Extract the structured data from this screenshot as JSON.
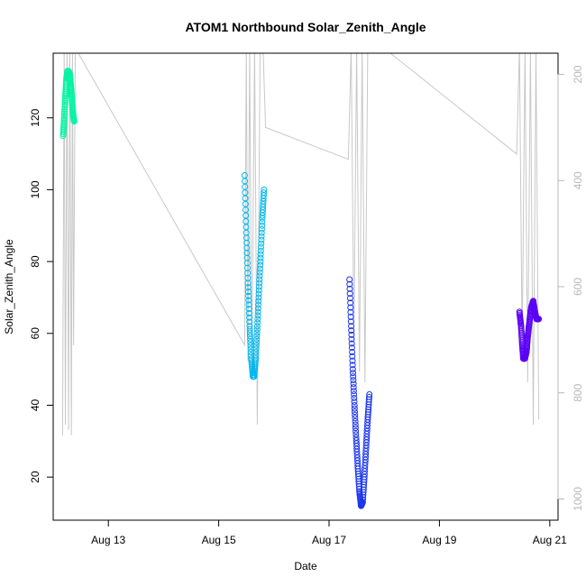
{
  "chart_data": {
    "type": "scatter",
    "title": "ATOM1 Northbound Solar_Zenith_Angle",
    "xlabel": "Date",
    "ylabel": "Solar_Zenith_Angle",
    "x_ticks": [
      "Aug 13",
      "Aug 15",
      "Aug 17",
      "Aug 19",
      "Aug 21"
    ],
    "x_tick_values": [
      13,
      15,
      17,
      19,
      21
    ],
    "xlim": [
      12.0,
      21.15
    ],
    "ylim": [
      8,
      138
    ],
    "y_ticks": [
      20,
      40,
      60,
      80,
      100,
      120
    ],
    "right_axis": {
      "ticks": [
        200,
        400,
        600,
        800,
        1000
      ],
      "lim": [
        1040,
        160
      ],
      "color": "#b8b8b8"
    },
    "grid": false,
    "legend": "none",
    "depth_trace": {
      "color": "#c8c8c8",
      "x": [
        12.17,
        12.2,
        12.22,
        12.25,
        12.28,
        12.3,
        12.33,
        12.35,
        12.37,
        12.4,
        15.47,
        15.5,
        15.53,
        15.56,
        15.6,
        15.65,
        15.7,
        15.75,
        15.8,
        15.85,
        17.35,
        17.4,
        17.45,
        17.5,
        17.55,
        17.6,
        17.65,
        17.7,
        17.75,
        20.4,
        20.45,
        20.5,
        20.55,
        20.6,
        20.65,
        20.7,
        20.75,
        20.8
      ],
      "y": [
        880,
        150,
        860,
        150,
        870,
        150,
        880,
        150,
        710,
        150,
        710,
        150,
        740,
        150,
        760,
        150,
        860,
        150,
        140,
        300,
        360,
        150,
        700,
        150,
        760,
        150,
        780,
        150,
        130,
        350,
        150,
        720,
        150,
        780,
        150,
        860,
        150,
        850
      ]
    },
    "series": [
      {
        "color": "#00f5a3",
        "x": [
          12.18,
          12.2,
          12.22,
          12.24,
          12.26,
          12.28,
          12.3,
          12.32,
          12.34,
          12.36,
          12.38
        ],
        "y": [
          115,
          120,
          126,
          131,
          133,
          133,
          132,
          129,
          125,
          121,
          119
        ]
      },
      {
        "color": "#00b7ee",
        "x": [
          15.47,
          15.5,
          15.53,
          15.56,
          15.59,
          15.62,
          15.64,
          15.67,
          15.7,
          15.73,
          15.76,
          15.79,
          15.82
        ],
        "y": [
          104,
          88,
          74,
          62,
          53,
          48,
          48,
          53,
          62,
          72,
          82,
          92,
          100
        ]
      },
      {
        "color": "#1c36ee",
        "x": [
          17.37,
          17.4,
          17.43,
          17.46,
          17.49,
          17.52,
          17.55,
          17.58,
          17.61,
          17.64,
          17.67,
          17.7,
          17.73
        ],
        "y": [
          75,
          62,
          50,
          40,
          31,
          23,
          16,
          12,
          13,
          20,
          28,
          36,
          43
        ]
      },
      {
        "color": "#5a00f5",
        "x": [
          20.45,
          20.48,
          20.5,
          20.52,
          20.55,
          20.58,
          20.6,
          20.63,
          20.66,
          20.7,
          20.73,
          20.76,
          20.8
        ],
        "y": [
          66,
          62,
          57,
          53,
          53,
          55,
          59,
          63,
          67,
          69,
          66,
          64,
          64
        ]
      }
    ]
  }
}
